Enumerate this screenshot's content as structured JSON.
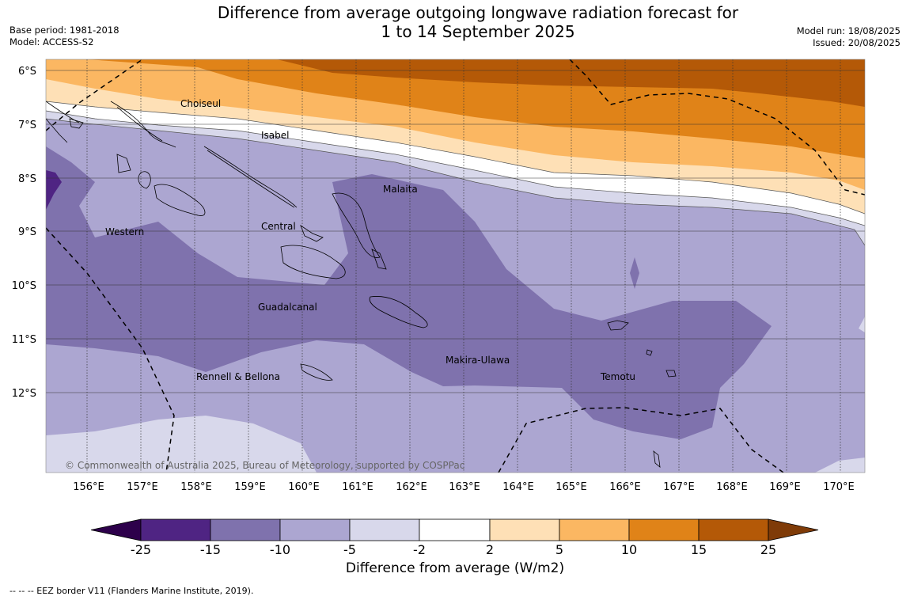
{
  "header": {
    "title_line1": "Difference from average outgoing longwave radiation forecast for",
    "title_line2": "1 to 14 September 2025",
    "base_period": "Base period: 1981-2018",
    "model": "Model: ACCESS-S2",
    "model_run": "Model run: 18/08/2025",
    "issued": "Issued: 20/08/2025"
  },
  "map": {
    "lat_labels": [
      "6°S",
      "7°S",
      "8°S",
      "9°S",
      "10°S",
      "11°S",
      "12°S"
    ],
    "lon_labels": [
      "156°E",
      "157°E",
      "158°E",
      "159°E",
      "160°E",
      "161°E",
      "162°E",
      "163°E",
      "164°E",
      "165°E",
      "166°E",
      "167°E",
      "168°E",
      "169°E",
      "170°E"
    ],
    "regions": [
      "Choiseul",
      "Isabel",
      "Malaita",
      "Western",
      "Central",
      "Guadalcanal",
      "Makira-Ulawa",
      "Rennell & Bellona",
      "Temotu"
    ],
    "copyright": "© Commonwealth of Australia 2025, Bureau of Meteorology, supported by COSPPac"
  },
  "colorbar": {
    "ticks": [
      "-25",
      "-15",
      "-10",
      "-5",
      "-2",
      "2",
      "5",
      "10",
      "15",
      "25"
    ],
    "colors": [
      "#4f2483",
      "#7f72ad",
      "#aca6d1",
      "#d8d8eb",
      "#ffffff",
      "#fee0b6",
      "#fbb762",
      "#e08318",
      "#b45907"
    ],
    "under_color": "#2d004b",
    "over_color": "#7f3b08",
    "title": "Difference from average (W/m2)"
  },
  "footnote": "--  --  -- EEZ border V11 (Flanders Marine Institute, 2019)."
}
